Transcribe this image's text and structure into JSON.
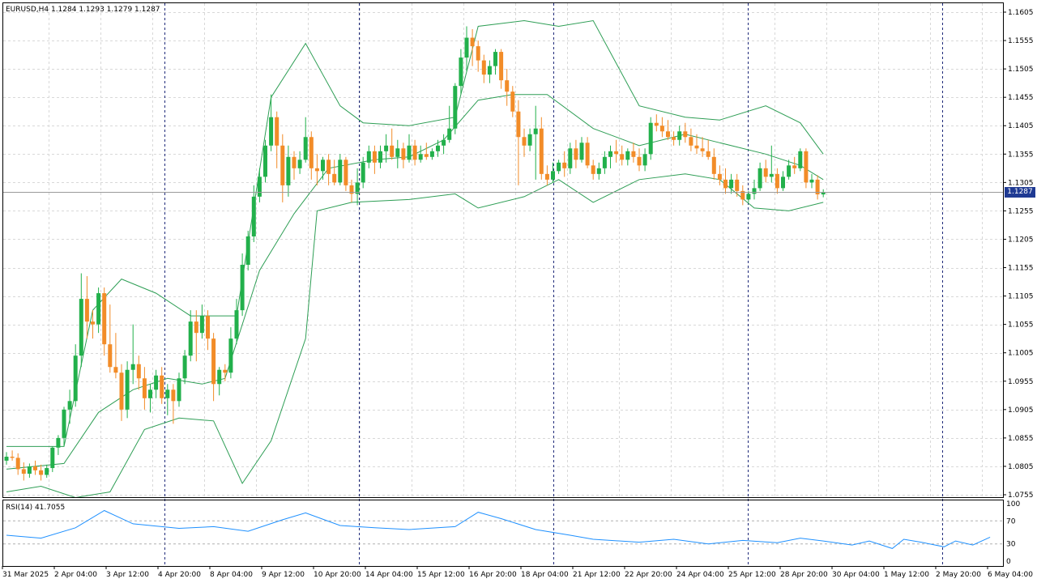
{
  "colors": {
    "background": "#ffffff",
    "frame": "#000000",
    "grid": "#d8d8d8",
    "session_separator": "#1f2a7a",
    "bull_candle": "#22b04b",
    "bear_candle": "#f28c28",
    "wick": "#555555",
    "bollinger": "#2e9e55",
    "rsi_line": "#1e90ff",
    "rsi_levels": "#b0b0b0",
    "price_tag_bg": "#1f3a93",
    "price_tag_text": "#ffffff",
    "current_price_line": "#9a9a9a"
  },
  "header": {
    "symbol_line": "EURUSD,H4  1.1284 1.1293 1.1279 1.1287"
  },
  "rsi_panel": {
    "label": "RSI(14) 41.7055",
    "levels": [
      "100",
      "70",
      "30",
      "0"
    ]
  },
  "price_axis": {
    "labels": [
      "1.1605",
      "1.1555",
      "1.1505",
      "1.1455",
      "1.1405",
      "1.1355",
      "1.1305",
      "1.1255",
      "1.1205",
      "1.1155",
      "1.1105",
      "1.1055",
      "1.1005",
      "1.0955",
      "1.0905",
      "1.0855",
      "1.0805",
      "1.0755"
    ],
    "current_price": "1.1287"
  },
  "time_axis": {
    "labels": [
      "31 Mar 2025",
      "2 Apr 04:00",
      "3 Apr 12:00",
      "4 Apr 20:00",
      "8 Apr 04:00",
      "9 Apr 12:00",
      "10 Apr 20:00",
      "14 Apr 04:00",
      "15 Apr 12:00",
      "16 Apr 20:00",
      "18 Apr 04:00",
      "21 Apr 12:00",
      "22 Apr 20:00",
      "24 Apr 04:00",
      "25 Apr 12:00",
      "28 Apr 20:00",
      "30 Apr 04:00",
      "1 May 12:00",
      "2 May 20:00",
      "6 May 04:00"
    ]
  },
  "chart_data": {
    "type": "candlestick",
    "symbol": "EURUSD",
    "timeframe": "H4",
    "ylim": [
      1.0755,
      1.1605
    ],
    "ohlc": [
      [
        1.0815,
        1.083,
        1.0808,
        1.0822
      ],
      [
        1.0822,
        1.0833,
        1.0815,
        1.082
      ],
      [
        1.082,
        1.0828,
        1.079,
        1.08
      ],
      [
        1.08,
        1.0812,
        1.078,
        1.0792
      ],
      [
        1.0792,
        1.081,
        1.0785,
        1.0805
      ],
      [
        1.0805,
        1.0815,
        1.079,
        1.0798
      ],
      [
        1.0798,
        1.0808,
        1.078,
        1.079
      ],
      [
        1.079,
        1.0808,
        1.0785,
        1.0802
      ],
      [
        1.0802,
        1.084,
        1.0795,
        1.0838
      ],
      [
        1.0838,
        1.086,
        1.0825,
        1.0855
      ],
      [
        1.0855,
        1.091,
        1.084,
        1.0905
      ],
      [
        1.0905,
        1.094,
        1.088,
        1.092
      ],
      [
        1.092,
        1.102,
        1.091,
        1.1
      ],
      [
        1.1,
        1.1145,
        1.098,
        1.11
      ],
      [
        1.11,
        1.114,
        1.103,
        1.106
      ],
      [
        1.106,
        1.108,
        1.103,
        1.1055
      ],
      [
        1.1055,
        1.112,
        1.104,
        1.111
      ],
      [
        1.111,
        1.112,
        1.1,
        1.102
      ],
      [
        1.102,
        1.109,
        1.097,
        1.098
      ],
      [
        1.098,
        1.104,
        1.096,
        1.097
      ],
      [
        1.097,
        1.0985,
        1.0885,
        1.0905
      ],
      [
        1.0905,
        1.099,
        1.089,
        1.0975
      ],
      [
        1.0975,
        1.1055,
        1.095,
        1.0985
      ],
      [
        1.0985,
        1.1,
        1.094,
        1.096
      ],
      [
        1.096,
        1.098,
        1.0905,
        1.0925
      ],
      [
        1.0925,
        1.095,
        1.09,
        1.094
      ],
      [
        1.094,
        1.0975,
        1.0925,
        1.0965
      ],
      [
        1.0965,
        1.098,
        1.0915,
        1.0925
      ],
      [
        1.0925,
        1.095,
        1.0895,
        1.094
      ],
      [
        1.094,
        1.095,
        1.088,
        1.092
      ],
      [
        1.092,
        1.097,
        1.091,
        1.096
      ],
      [
        1.096,
        1.101,
        1.095,
        1.1
      ],
      [
        1.1,
        1.108,
        1.099,
        1.106
      ],
      [
        1.106,
        1.108,
        1.099,
        1.104
      ],
      [
        1.104,
        1.109,
        1.103,
        1.107
      ],
      [
        1.107,
        1.108,
        1.101,
        1.103
      ],
      [
        1.103,
        1.104,
        1.092,
        1.095
      ],
      [
        1.095,
        1.098,
        1.093,
        1.0975
      ],
      [
        1.0975,
        1.0985,
        1.0955,
        1.097
      ],
      [
        1.097,
        1.105,
        1.096,
        1.103
      ],
      [
        1.103,
        1.11,
        1.102,
        1.108
      ],
      [
        1.108,
        1.118,
        1.107,
        1.116
      ],
      [
        1.116,
        1.122,
        1.115,
        1.121
      ],
      [
        1.121,
        1.13,
        1.12,
        1.128
      ],
      [
        1.128,
        1.133,
        1.127,
        1.1315
      ],
      [
        1.1315,
        1.138,
        1.1305,
        1.137
      ],
      [
        1.137,
        1.146,
        1.136,
        1.142
      ],
      [
        1.142,
        1.143,
        1.133,
        1.137
      ],
      [
        1.137,
        1.139,
        1.127,
        1.13
      ],
      [
        1.13,
        1.137,
        1.128,
        1.135
      ],
      [
        1.135,
        1.136,
        1.131,
        1.133
      ],
      [
        1.133,
        1.136,
        1.132,
        1.1345
      ],
      [
        1.1345,
        1.142,
        1.134,
        1.1385
      ],
      [
        1.1385,
        1.1395,
        1.131,
        1.133
      ],
      [
        1.133,
        1.1355,
        1.13,
        1.1325
      ],
      [
        1.1325,
        1.135,
        1.131,
        1.1345
      ],
      [
        1.1345,
        1.1355,
        1.13,
        1.132
      ],
      [
        1.132,
        1.1345,
        1.13,
        1.1305
      ],
      [
        1.1305,
        1.1355,
        1.13,
        1.1345
      ],
      [
        1.1345,
        1.135,
        1.129,
        1.13
      ],
      [
        1.13,
        1.131,
        1.127,
        1.1285
      ],
      [
        1.1285,
        1.133,
        1.1265,
        1.1305
      ],
      [
        1.1305,
        1.135,
        1.1295,
        1.134
      ],
      [
        1.134,
        1.137,
        1.133,
        1.136
      ],
      [
        1.136,
        1.137,
        1.132,
        1.134
      ],
      [
        1.134,
        1.137,
        1.133,
        1.136
      ],
      [
        1.136,
        1.139,
        1.134,
        1.137
      ],
      [
        1.137,
        1.14,
        1.1345,
        1.135
      ],
      [
        1.135,
        1.138,
        1.133,
        1.1365
      ],
      [
        1.1365,
        1.1375,
        1.133,
        1.1345
      ],
      [
        1.1345,
        1.139,
        1.134,
        1.137
      ],
      [
        1.137,
        1.138,
        1.1335,
        1.1345
      ],
      [
        1.1345,
        1.137,
        1.134,
        1.1355
      ],
      [
        1.1355,
        1.1375,
        1.1345,
        1.135
      ],
      [
        1.135,
        1.1365,
        1.1345,
        1.136
      ],
      [
        1.136,
        1.138,
        1.135,
        1.137
      ],
      [
        1.137,
        1.139,
        1.1355,
        1.138
      ],
      [
        1.138,
        1.144,
        1.1375,
        1.14
      ],
      [
        1.14,
        1.148,
        1.139,
        1.1475
      ],
      [
        1.1475,
        1.154,
        1.146,
        1.1525
      ],
      [
        1.1525,
        1.158,
        1.15,
        1.156
      ],
      [
        1.156,
        1.1575,
        1.151,
        1.1545
      ],
      [
        1.1545,
        1.1555,
        1.15,
        1.152
      ],
      [
        1.152,
        1.153,
        1.148,
        1.1495
      ],
      [
        1.1495,
        1.152,
        1.148,
        1.151
      ],
      [
        1.151,
        1.154,
        1.1495,
        1.1535
      ],
      [
        1.1535,
        1.154,
        1.147,
        1.1485
      ],
      [
        1.1485,
        1.1505,
        1.144,
        1.1465
      ],
      [
        1.1465,
        1.1475,
        1.142,
        1.143
      ],
      [
        1.143,
        1.145,
        1.13,
        1.1385
      ],
      [
        1.1385,
        1.14,
        1.135,
        1.137
      ],
      [
        1.137,
        1.14,
        1.136,
        1.139
      ],
      [
        1.139,
        1.144,
        1.131,
        1.14
      ],
      [
        1.14,
        1.142,
        1.131,
        1.132
      ],
      [
        1.132,
        1.1335,
        1.13,
        1.131
      ],
      [
        1.131,
        1.134,
        1.1305,
        1.1325
      ],
      [
        1.1325,
        1.1345,
        1.132,
        1.134
      ],
      [
        1.134,
        1.136,
        1.1315,
        1.133
      ],
      [
        1.133,
        1.1375,
        1.132,
        1.1365
      ],
      [
        1.1365,
        1.138,
        1.133,
        1.1345
      ],
      [
        1.1345,
        1.1385,
        1.134,
        1.1375
      ],
      [
        1.1375,
        1.1385,
        1.133,
        1.1335
      ],
      [
        1.1335,
        1.1345,
        1.131,
        1.132
      ],
      [
        1.132,
        1.134,
        1.131,
        1.133
      ],
      [
        1.133,
        1.136,
        1.132,
        1.135
      ],
      [
        1.135,
        1.137,
        1.133,
        1.136
      ],
      [
        1.136,
        1.138,
        1.134,
        1.1355
      ],
      [
        1.1355,
        1.137,
        1.1335,
        1.1345
      ],
      [
        1.1345,
        1.1365,
        1.1335,
        1.136
      ],
      [
        1.136,
        1.1375,
        1.134,
        1.135
      ],
      [
        1.135,
        1.1365,
        1.1325,
        1.1335
      ],
      [
        1.1335,
        1.1365,
        1.1325,
        1.1355
      ],
      [
        1.1355,
        1.142,
        1.1345,
        1.141
      ],
      [
        1.141,
        1.1425,
        1.1395,
        1.1405
      ],
      [
        1.1405,
        1.142,
        1.1385,
        1.1395
      ],
      [
        1.1395,
        1.1415,
        1.138,
        1.1385
      ],
      [
        1.1385,
        1.1395,
        1.137,
        1.138
      ],
      [
        1.138,
        1.1405,
        1.137,
        1.1395
      ],
      [
        1.1395,
        1.141,
        1.1375,
        1.1385
      ],
      [
        1.1385,
        1.14,
        1.136,
        1.137
      ],
      [
        1.137,
        1.139,
        1.1355,
        1.1365
      ],
      [
        1.1365,
        1.1385,
        1.135,
        1.136
      ],
      [
        1.136,
        1.138,
        1.1345,
        1.135
      ],
      [
        1.135,
        1.1365,
        1.131,
        1.132
      ],
      [
        1.132,
        1.1335,
        1.13,
        1.131
      ],
      [
        1.131,
        1.133,
        1.1285,
        1.1295
      ],
      [
        1.1295,
        1.132,
        1.1285,
        1.131
      ],
      [
        1.131,
        1.132,
        1.128,
        1.129
      ],
      [
        1.129,
        1.13,
        1.1265,
        1.1275
      ],
      [
        1.1275,
        1.129,
        1.127,
        1.1285
      ],
      [
        1.1285,
        1.131,
        1.1275,
        1.1295
      ],
      [
        1.1295,
        1.134,
        1.129,
        1.133
      ],
      [
        1.133,
        1.1345,
        1.1305,
        1.1315
      ],
      [
        1.1315,
        1.137,
        1.1305,
        1.132
      ],
      [
        1.132,
        1.133,
        1.1285,
        1.1295
      ],
      [
        1.1295,
        1.1325,
        1.129,
        1.1315
      ],
      [
        1.1315,
        1.1345,
        1.131,
        1.1335
      ],
      [
        1.1335,
        1.135,
        1.132,
        1.133
      ],
      [
        1.133,
        1.1365,
        1.1325,
        1.136
      ],
      [
        1.136,
        1.1365,
        1.1295,
        1.1305
      ],
      [
        1.1305,
        1.132,
        1.1295,
        1.131
      ],
      [
        1.131,
        1.1318,
        1.1275,
        1.1284
      ],
      [
        1.1284,
        1.1293,
        1.1279,
        1.1287
      ]
    ],
    "bollinger": {
      "period": 20,
      "upper": [
        [
          0,
          1.084
        ],
        [
          10,
          1.084
        ],
        [
          15,
          1.108
        ],
        [
          20,
          1.1135
        ],
        [
          26,
          1.111
        ],
        [
          32,
          1.107
        ],
        [
          40,
          1.107
        ],
        [
          46,
          1.1455
        ],
        [
          52,
          1.155
        ],
        [
          58,
          1.144
        ],
        [
          62,
          1.141
        ],
        [
          70,
          1.1405
        ],
        [
          78,
          1.142
        ],
        [
          82,
          1.158
        ],
        [
          90,
          1.159
        ],
        [
          96,
          1.158
        ],
        [
          102,
          1.159
        ],
        [
          110,
          1.144
        ],
        [
          118,
          1.142
        ],
        [
          124,
          1.1415
        ],
        [
          132,
          1.144
        ],
        [
          138,
          1.141
        ],
        [
          142,
          1.1355
        ]
      ],
      "middle": [
        [
          0,
          1.08
        ],
        [
          10,
          1.081
        ],
        [
          16,
          1.09
        ],
        [
          22,
          1.094
        ],
        [
          28,
          1.096
        ],
        [
          34,
          1.095
        ],
        [
          38,
          1.096
        ],
        [
          44,
          1.115
        ],
        [
          50,
          1.125
        ],
        [
          56,
          1.133
        ],
        [
          64,
          1.1345
        ],
        [
          70,
          1.135
        ],
        [
          76,
          1.138
        ],
        [
          82,
          1.145
        ],
        [
          88,
          1.146
        ],
        [
          94,
          1.146
        ],
        [
          102,
          1.14
        ],
        [
          110,
          1.137
        ],
        [
          118,
          1.139
        ],
        [
          124,
          1.1375
        ],
        [
          132,
          1.1355
        ],
        [
          138,
          1.1335
        ],
        [
          142,
          1.131
        ]
      ],
      "lower": [
        [
          0,
          1.076
        ],
        [
          6,
          1.077
        ],
        [
          12,
          1.075
        ],
        [
          18,
          1.076
        ],
        [
          24,
          1.087
        ],
        [
          30,
          1.089
        ],
        [
          36,
          1.0885
        ],
        [
          41,
          1.0775
        ],
        [
          46,
          1.085
        ],
        [
          52,
          1.103
        ],
        [
          54,
          1.1255
        ],
        [
          60,
          1.127
        ],
        [
          70,
          1.1275
        ],
        [
          78,
          1.1285
        ],
        [
          82,
          1.126
        ],
        [
          90,
          1.128
        ],
        [
          96,
          1.131
        ],
        [
          102,
          1.127
        ],
        [
          110,
          1.131
        ],
        [
          118,
          1.132
        ],
        [
          124,
          1.131
        ],
        [
          130,
          1.126
        ],
        [
          136,
          1.1255
        ],
        [
          142,
          1.127
        ]
      ]
    },
    "rsi": {
      "period": 14,
      "levels": [
        70,
        30
      ],
      "ylim": [
        0,
        100
      ],
      "points": [
        [
          0,
          45
        ],
        [
          6,
          40
        ],
        [
          12,
          58
        ],
        [
          17,
          88
        ],
        [
          22,
          65
        ],
        [
          30,
          57
        ],
        [
          36,
          60
        ],
        [
          42,
          52
        ],
        [
          48,
          72
        ],
        [
          52,
          84
        ],
        [
          58,
          62
        ],
        [
          64,
          58
        ],
        [
          70,
          55
        ],
        [
          78,
          60
        ],
        [
          82,
          85
        ],
        [
          86,
          74
        ],
        [
          92,
          55
        ],
        [
          98,
          45
        ],
        [
          102,
          38
        ],
        [
          110,
          33
        ],
        [
          116,
          38
        ],
        [
          122,
          30
        ],
        [
          128,
          36
        ],
        [
          134,
          32
        ],
        [
          138,
          40
        ],
        [
          142,
          35
        ],
        [
          147,
          28
        ],
        [
          150,
          35
        ],
        [
          154,
          22
        ],
        [
          156,
          38
        ],
        [
          159,
          33
        ],
        [
          163,
          25
        ],
        [
          165,
          35
        ],
        [
          168,
          28
        ],
        [
          171,
          41.7055
        ]
      ]
    }
  }
}
